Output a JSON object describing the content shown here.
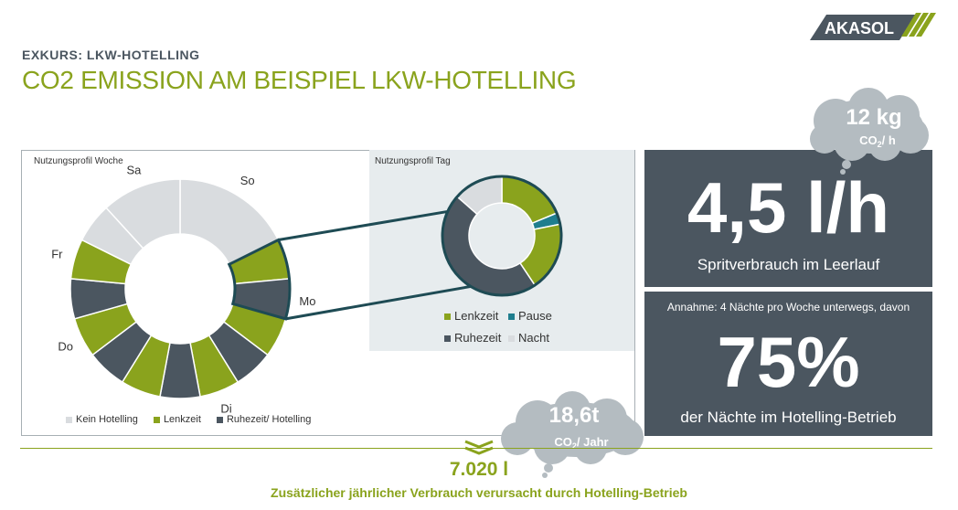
{
  "header": {
    "supertitle": "EXKURS: LKW-HOTELLING",
    "title": "CO2 EMISSION AM BEISPIEL LKW-HOTELLING",
    "logo_text": "AKASOL"
  },
  "colors": {
    "accent_green": "#8aa31d",
    "dark_slate": "#4b5660",
    "light_gray": "#d9dcdf",
    "teal": "#1f7e8e",
    "cloud": "#b4bcc1"
  },
  "chart_data": [
    {
      "type": "pie",
      "title": "Nutzungsprofil Woche",
      "categories": [
        "So",
        "Mo",
        "Di",
        "Do",
        "Fr",
        "Sa"
      ],
      "slices": [
        {
          "label": "So",
          "category": "Kein Hotelling",
          "value": 1.5
        },
        {
          "label": "",
          "category": "Lenkzeit",
          "value": 0.5
        },
        {
          "label": "Mo",
          "category": "Ruhezeit/ Hotelling",
          "value": 0.5
        },
        {
          "label": "",
          "category": "Lenkzeit",
          "value": 0.5
        },
        {
          "label": "",
          "category": "Ruhezeit/ Hotelling",
          "value": 0.5
        },
        {
          "label": "Di",
          "category": "Lenkzeit",
          "value": 0.5
        },
        {
          "label": "",
          "category": "Ruhezeit/ Hotelling",
          "value": 0.5
        },
        {
          "label": "",
          "category": "Lenkzeit",
          "value": 0.5
        },
        {
          "label": "",
          "category": "Ruhezeit/ Hotelling",
          "value": 0.5
        },
        {
          "label": "Do",
          "category": "Lenkzeit",
          "value": 0.5
        },
        {
          "label": "",
          "category": "Ruhezeit/ Hotelling",
          "value": 0.5
        },
        {
          "label": "Fr",
          "category": "Lenkzeit",
          "value": 0.5
        },
        {
          "label": "",
          "category": "Kein Hotelling",
          "value": 0.5
        },
        {
          "label": "Sa",
          "category": "Kein Hotelling",
          "value": 1.0
        }
      ],
      "legend": [
        "Kein Hotelling",
        "Lenkzeit",
        "Ruhezeit/ Hotelling"
      ],
      "legend_placement": "bottom"
    },
    {
      "type": "pie",
      "title": "Nutzungsprofil Tag",
      "slices": [
        {
          "category": "Lenkzeit",
          "value": 4.5
        },
        {
          "category": "Pause",
          "value": 0.75
        },
        {
          "category": "Lenkzeit",
          "value": 4.5
        },
        {
          "category": "Ruhezeit",
          "value": 11
        },
        {
          "category": "Nacht",
          "value": 3.25
        }
      ],
      "legend": [
        "Lenkzeit",
        "Pause",
        "Ruhezeit",
        "Nacht"
      ],
      "legend_placement": "bottom"
    }
  ],
  "fuel": {
    "value": "4,5 l/h",
    "caption": "Spritverbrauch im Leerlauf"
  },
  "nights": {
    "assumption": "Annahme: 4 Nächte pro Woche unterwegs, davon",
    "value": "75%",
    "caption": "der Nächte im Hotelling-Betrieb"
  },
  "cloud_hourly": {
    "value": "12 kg",
    "unit_prefix": "CO",
    "unit_sub": "2",
    "unit_suffix": "/ h"
  },
  "cloud_annual": {
    "value": "18,6t",
    "unit_prefix": "CO",
    "unit_sub": "2",
    "unit_suffix": "/ Jahr"
  },
  "annual": {
    "value": "7.020 l",
    "caption": "Zusätzlicher jährlicher Verbrauch verursacht durch Hotelling-Betrieb"
  }
}
